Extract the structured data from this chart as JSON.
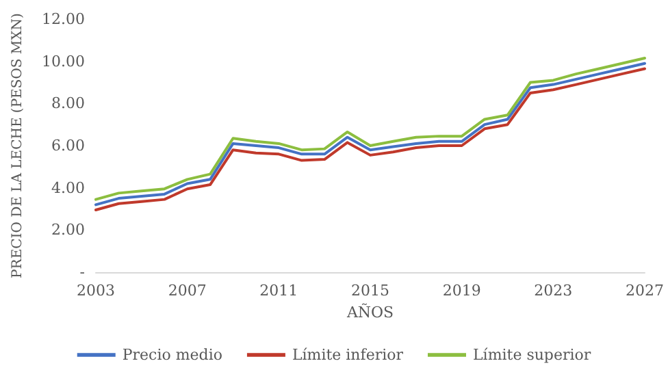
{
  "chart_data": {
    "type": "line",
    "xlabel": "AÑOS",
    "ylabel": "PRECIO DE LA LECHE (PESOS MXN)",
    "categories": [
      "2003",
      null,
      null,
      null,
      "2007",
      null,
      null,
      null,
      "2011",
      null,
      null,
      null,
      "2015",
      null,
      null,
      null,
      "2019",
      null,
      null,
      null,
      "2023",
      null,
      null,
      null,
      "2027"
    ],
    "series": [
      {
        "name": "Precio medio",
        "color": "#4472c4",
        "values": [
          3.2,
          3.5,
          3.6,
          3.7,
          4.2,
          4.4,
          6.1,
          6.0,
          5.9,
          5.6,
          5.6,
          6.4,
          5.8,
          5.95,
          6.1,
          6.2,
          6.2,
          7.0,
          7.25,
          8.75,
          8.9,
          9.15,
          9.4,
          9.65,
          9.9
        ]
      },
      {
        "name": "Límite inferior",
        "color": "#c0392b",
        "values": [
          2.95,
          3.25,
          3.35,
          3.45,
          3.95,
          4.15,
          5.8,
          5.65,
          5.6,
          5.3,
          5.35,
          6.15,
          5.55,
          5.7,
          5.9,
          6.0,
          6.0,
          6.8,
          7.0,
          8.5,
          8.65,
          8.9,
          9.15,
          9.4,
          9.65
        ]
      },
      {
        "name": "Límite superior",
        "color": "#8cbe3f",
        "values": [
          3.45,
          3.75,
          3.85,
          3.95,
          4.4,
          4.65,
          6.35,
          6.2,
          6.1,
          5.8,
          5.85,
          6.65,
          6.0,
          6.2,
          6.4,
          6.45,
          6.45,
          7.25,
          7.45,
          9.0,
          9.1,
          9.4,
          9.65,
          9.9,
          10.15
        ]
      }
    ],
    "ylim": [
      0,
      12
    ],
    "yticks": [
      {
        "value": 0,
        "label": "-"
      },
      {
        "value": 2,
        "label": "2.00"
      },
      {
        "value": 4,
        "label": "4.00"
      },
      {
        "value": 6,
        "label": "6.00"
      },
      {
        "value": 8,
        "label": "8.00"
      },
      {
        "value": 10,
        "label": "10.00"
      },
      {
        "value": 12,
        "label": "12.00"
      }
    ],
    "grid": false,
    "legend": "bottom",
    "marker": "none",
    "line_style": "solid"
  }
}
